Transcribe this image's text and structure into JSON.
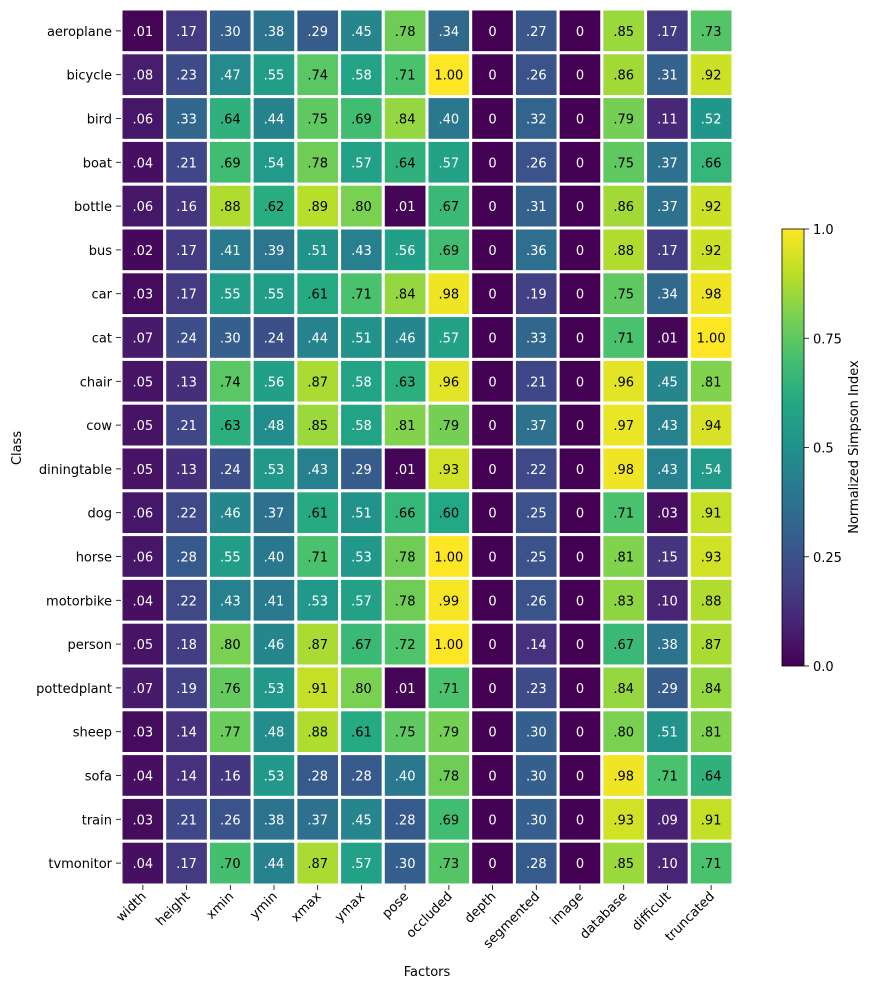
{
  "chart_data": {
    "type": "heatmap",
    "xlabel": "Factors",
    "ylabel": "Class",
    "colorbar_label": "Normalized Simpson Index",
    "colorbar_ticks": [
      "0.0",
      "0.25",
      "0.5",
      "0.75",
      "1.0"
    ],
    "colorbar_range": [
      0,
      1
    ],
    "colormap": "viridis",
    "x": [
      "width",
      "height",
      "xmin",
      "ymin",
      "xmax",
      "ymax",
      "pose",
      "occluded",
      "depth",
      "segmented",
      "image",
      "database",
      "difficult",
      "truncated"
    ],
    "y": [
      "aeroplane",
      "bicycle",
      "bird",
      "boat",
      "bottle",
      "bus",
      "car",
      "cat",
      "chair",
      "cow",
      "diningtable",
      "dog",
      "horse",
      "motorbike",
      "person",
      "pottedplant",
      "sheep",
      "sofa",
      "train",
      "tvmonitor"
    ],
    "values": [
      [
        0.01,
        0.17,
        0.3,
        0.38,
        0.29,
        0.45,
        0.78,
        0.34,
        0,
        0.27,
        0,
        0.85,
        0.17,
        0.73
      ],
      [
        0.08,
        0.23,
        0.47,
        0.55,
        0.74,
        0.58,
        0.71,
        1.0,
        0,
        0.26,
        0,
        0.86,
        0.31,
        0.92
      ],
      [
        0.06,
        0.33,
        0.64,
        0.44,
        0.75,
        0.69,
        0.84,
        0.4,
        0,
        0.32,
        0,
        0.79,
        0.11,
        0.52
      ],
      [
        0.04,
        0.21,
        0.69,
        0.54,
        0.78,
        0.57,
        0.64,
        0.57,
        0,
        0.26,
        0,
        0.75,
        0.37,
        0.66
      ],
      [
        0.06,
        0.16,
        0.88,
        0.62,
        0.89,
        0.8,
        0.01,
        0.67,
        0,
        0.31,
        0,
        0.86,
        0.37,
        0.92
      ],
      [
        0.02,
        0.17,
        0.41,
        0.39,
        0.51,
        0.43,
        0.56,
        0.69,
        0,
        0.36,
        0,
        0.88,
        0.17,
        0.92
      ],
      [
        0.03,
        0.17,
        0.55,
        0.55,
        0.61,
        0.71,
        0.84,
        0.98,
        0,
        0.19,
        0,
        0.75,
        0.34,
        0.98
      ],
      [
        0.07,
        0.24,
        0.3,
        0.24,
        0.44,
        0.51,
        0.46,
        0.57,
        0,
        0.33,
        0,
        0.71,
        0.01,
        1.0
      ],
      [
        0.05,
        0.13,
        0.74,
        0.56,
        0.87,
        0.58,
        0.63,
        0.96,
        0,
        0.21,
        0,
        0.96,
        0.45,
        0.81
      ],
      [
        0.05,
        0.21,
        0.63,
        0.48,
        0.85,
        0.58,
        0.81,
        0.79,
        0,
        0.37,
        0,
        0.97,
        0.43,
        0.94
      ],
      [
        0.05,
        0.13,
        0.24,
        0.53,
        0.43,
        0.29,
        0.01,
        0.93,
        0,
        0.22,
        0,
        0.98,
        0.43,
        0.54
      ],
      [
        0.06,
        0.22,
        0.46,
        0.37,
        0.61,
        0.51,
        0.66,
        0.6,
        0,
        0.25,
        0,
        0.71,
        0.03,
        0.91
      ],
      [
        0.06,
        0.28,
        0.55,
        0.4,
        0.71,
        0.53,
        0.78,
        1.0,
        0,
        0.25,
        0,
        0.81,
        0.15,
        0.93
      ],
      [
        0.04,
        0.22,
        0.43,
        0.41,
        0.53,
        0.57,
        0.78,
        0.99,
        0,
        0.26,
        0,
        0.83,
        0.1,
        0.88
      ],
      [
        0.05,
        0.18,
        0.8,
        0.46,
        0.87,
        0.67,
        0.72,
        1.0,
        0,
        0.14,
        0,
        0.67,
        0.38,
        0.87
      ],
      [
        0.07,
        0.19,
        0.76,
        0.53,
        0.91,
        0.8,
        0.01,
        0.71,
        0,
        0.23,
        0,
        0.84,
        0.29,
        0.84
      ],
      [
        0.03,
        0.14,
        0.77,
        0.48,
        0.88,
        0.61,
        0.75,
        0.79,
        0,
        0.3,
        0,
        0.8,
        0.51,
        0.81
      ],
      [
        0.04,
        0.14,
        0.16,
        0.53,
        0.28,
        0.28,
        0.4,
        0.78,
        0,
        0.3,
        0,
        0.98,
        0.71,
        0.64
      ],
      [
        0.03,
        0.21,
        0.26,
        0.38,
        0.37,
        0.45,
        0.28,
        0.69,
        0,
        0.3,
        0,
        0.93,
        0.09,
        0.91
      ],
      [
        0.04,
        0.17,
        0.7,
        0.44,
        0.87,
        0.57,
        0.3,
        0.73,
        0,
        0.28,
        0,
        0.85,
        0.1,
        0.71
      ]
    ]
  }
}
